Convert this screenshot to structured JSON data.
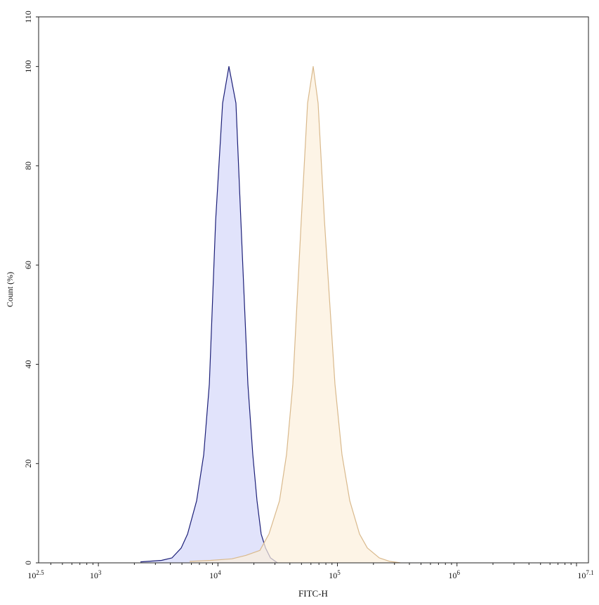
{
  "chart_data": {
    "type": "area",
    "title": "",
    "xlabel": "FITC-H",
    "ylabel": "Count (%)",
    "x_scale": "log",
    "xlim": [
      316.23,
      12589254
    ],
    "ylim": [
      0,
      110
    ],
    "x_ticks": [
      {
        "exp": 2.5,
        "base": "10",
        "sup": "2.5"
      },
      {
        "exp": 3,
        "base": "10",
        "sup": "3"
      },
      {
        "exp": 4,
        "base": "10",
        "sup": "4"
      },
      {
        "exp": 5,
        "base": "10",
        "sup": "5"
      },
      {
        "exp": 6,
        "base": "10",
        "sup": "6"
      },
      {
        "exp": 7.1,
        "base": "10",
        "sup": "7.1"
      }
    ],
    "y_ticks": [
      "0",
      "20",
      "40",
      "60",
      "80",
      "100",
      "110"
    ],
    "y_tick_values": [
      0,
      20,
      40,
      60,
      80,
      100,
      110
    ],
    "grid": false,
    "legend": "none",
    "series": [
      {
        "color": "#1c1f78",
        "fill": "#dfe2fb",
        "x": [
          2249,
          3373,
          4130,
          4932,
          5572,
          6637,
          7603,
          8472,
          9572,
          10940,
          12360,
          14160,
          15560,
          17820,
          19590,
          21230,
          23010,
          25000,
          27480,
          31480
        ],
        "y": [
          0.2,
          0.5,
          1,
          3,
          5.8,
          12.5,
          21.8,
          36,
          69,
          92.6,
          100,
          92.6,
          69,
          36,
          21.8,
          12.5,
          5.8,
          3,
          1,
          0
        ]
      },
      {
        "color": "#d9b98c",
        "fill": "#fcefdc",
        "x": [
          5794,
          8690,
          13060,
          17100,
          22440,
          26730,
          32730,
          37500,
          42360,
          49770,
          56230,
          62660,
          68870,
          77800,
          95280,
          109100,
          126800,
          153100,
          177800,
          223900,
          274200,
          335700
        ],
        "y": [
          0.3,
          0.5,
          0.8,
          1.5,
          2.5,
          5.8,
          12.5,
          21.8,
          36,
          69,
          92.6,
          100,
          92.6,
          69,
          36,
          21.8,
          12.5,
          5.8,
          3,
          1,
          0.3,
          0
        ]
      }
    ]
  }
}
